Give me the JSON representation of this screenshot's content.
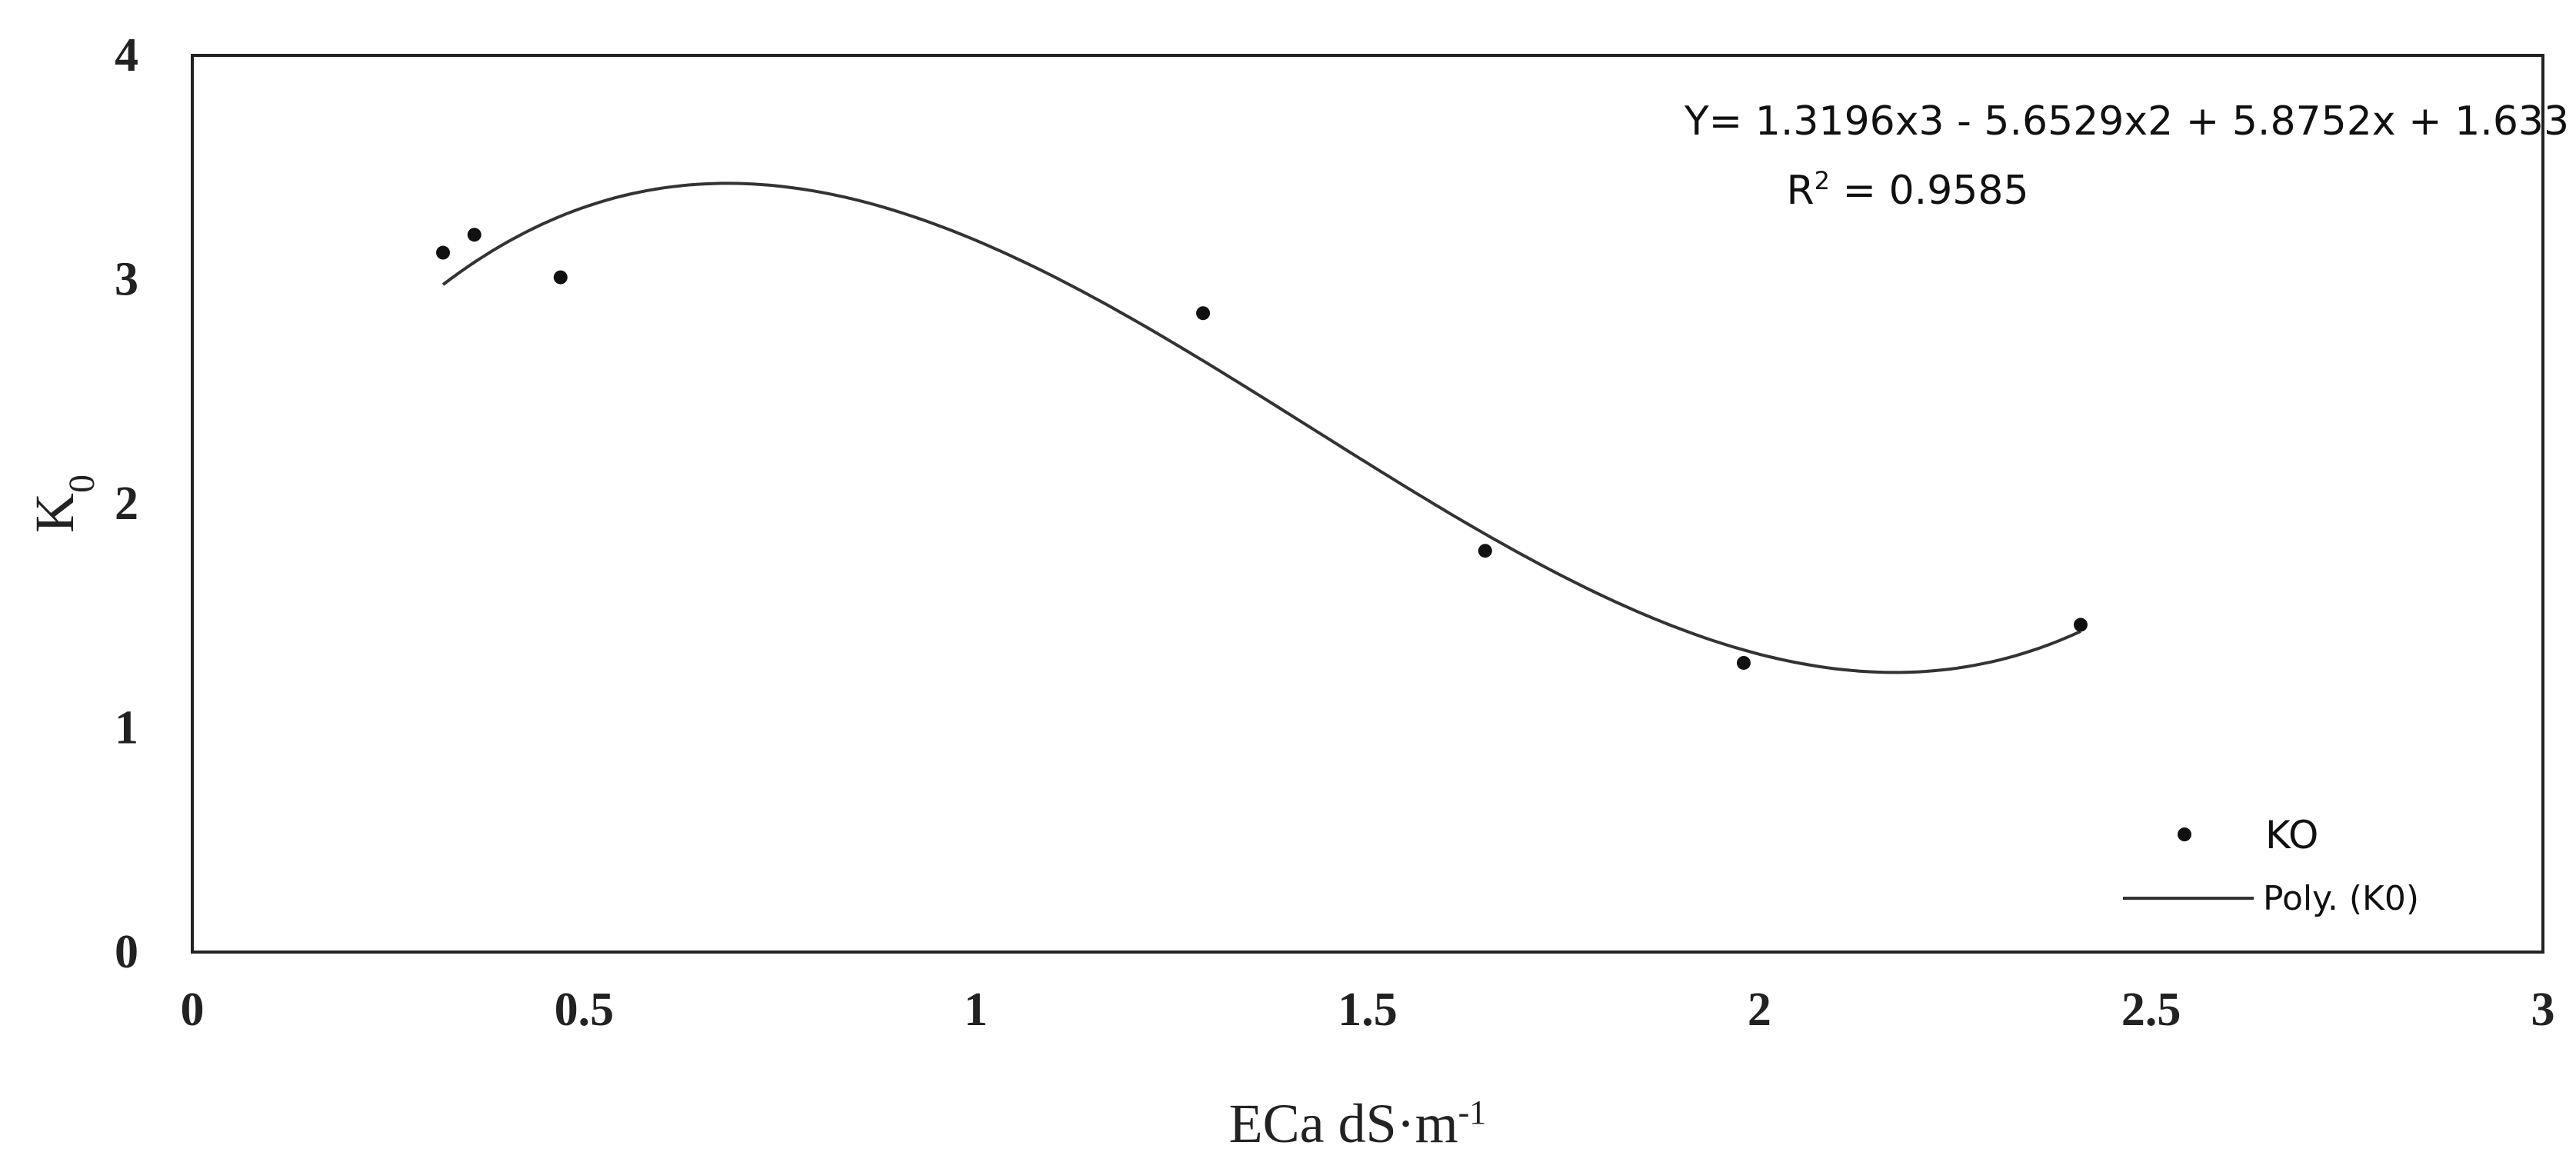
{
  "chart_data": {
    "type": "scatter",
    "title": "",
    "xlabel": "ECa dS·m",
    "xlabel_sup": "-1",
    "ylabel": "K",
    "ylabel_sub": "0",
    "xlim": [
      0,
      3
    ],
    "ylim": [
      0,
      4
    ],
    "x_ticks": [
      "0",
      "0.5",
      "1",
      "1.5",
      "2",
      "2.5",
      "3"
    ],
    "y_ticks": [
      "0",
      "1",
      "2",
      "3",
      "4"
    ],
    "grid": false,
    "legend_position": "bottom-right",
    "series": [
      {
        "name": "KO",
        "kind": "points",
        "x": [
          0.32,
          0.36,
          0.47,
          1.29,
          1.65,
          1.98,
          2.41
        ],
        "y": [
          3.12,
          3.2,
          3.01,
          2.85,
          1.79,
          1.29,
          1.46
        ]
      },
      {
        "name": "Poly. (K0)",
        "kind": "trendline",
        "coefficients": [
          1.3196,
          -5.6529,
          5.8752,
          1.633
        ],
        "x_range": [
          0.32,
          2.41
        ]
      }
    ],
    "annotations": {
      "equation": "Y= 1.3196x3 - 5.6529x2 + 5.8752x + 1.633",
      "r2_label": "R",
      "r2_sup": "2",
      "r2_value": " = 0.9585"
    },
    "colors": {
      "points": "#111111",
      "line": "#333333",
      "frame": "#222222"
    }
  }
}
